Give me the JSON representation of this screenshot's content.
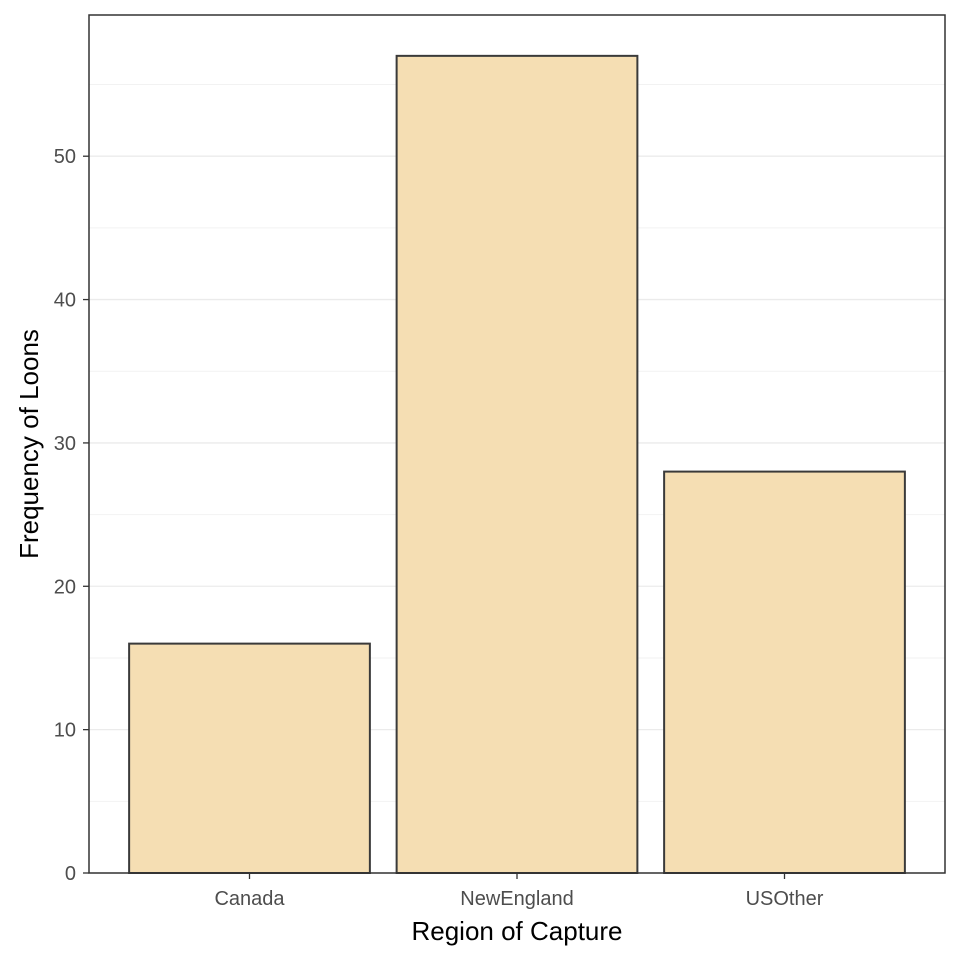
{
  "chart_data": {
    "type": "bar",
    "title": "",
    "xlabel": "Region of Capture",
    "ylabel": "Frequency of Loons",
    "categories": [
      "Canada",
      "NewEngland",
      "USOther"
    ],
    "values": [
      16,
      57,
      28
    ],
    "ylim": [
      0,
      59.85
    ],
    "yticks": [
      0,
      10,
      20,
      30,
      40,
      50
    ],
    "grid": true,
    "legend": "none",
    "colors": {
      "bar_fill": "#F5DEB3",
      "bar_stroke": "#3a3a3a",
      "panel_border": "#333333",
      "grid_major": "#ebebeb",
      "grid_minor": "#f2f2f2",
      "tick_label": "#4d4d4d",
      "axis_title": "#000000"
    }
  }
}
